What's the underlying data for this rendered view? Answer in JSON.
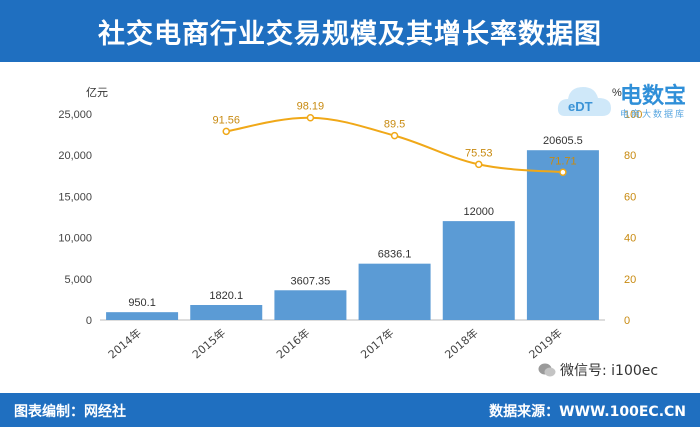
{
  "header": {
    "title": "社交电商行业交易规模及其增长率数据图"
  },
  "footer": {
    "left": "图表编制：网经社",
    "right": "数据来源：WWW.100EC.CN"
  },
  "watermark": {
    "wechat": "微信号: i100ec"
  },
  "logo": {
    "text": "电数宝",
    "sub": "电商大数据库",
    "badge": "eDT"
  },
  "colors": {
    "bar": "#5b9bd5",
    "line": "#f0a818",
    "brand": "#1f6fc0"
  },
  "chart_data": {
    "type": "bar+line",
    "categories": [
      "2014年",
      "2015年",
      "2016年",
      "2017年",
      "2018年",
      "2019年"
    ],
    "y_left_unit": "亿元",
    "y_right_unit": "%",
    "ylim_left": [
      0,
      25000
    ],
    "ylim_right": [
      0,
      100
    ],
    "y_left_ticks": [
      "0",
      "5,000",
      "10,000",
      "15,000",
      "20,000",
      "25,000"
    ],
    "y_right_ticks": [
      "0",
      "20",
      "40",
      "60",
      "80",
      "100"
    ],
    "bars": {
      "values": [
        950.1,
        1820.1,
        3607.35,
        6836.1,
        12000,
        20605.5
      ],
      "labels": [
        "950.1",
        "1820.1",
        "3607.35",
        "6836.1",
        "12000",
        "20605.5"
      ]
    },
    "line": {
      "x_index": [
        1,
        2,
        3,
        4,
        5
      ],
      "values": [
        91.56,
        98.19,
        89.5,
        75.53,
        71.71
      ],
      "labels": [
        "91.56",
        "98.19",
        "89.5",
        "75.53",
        "71.71"
      ]
    }
  }
}
